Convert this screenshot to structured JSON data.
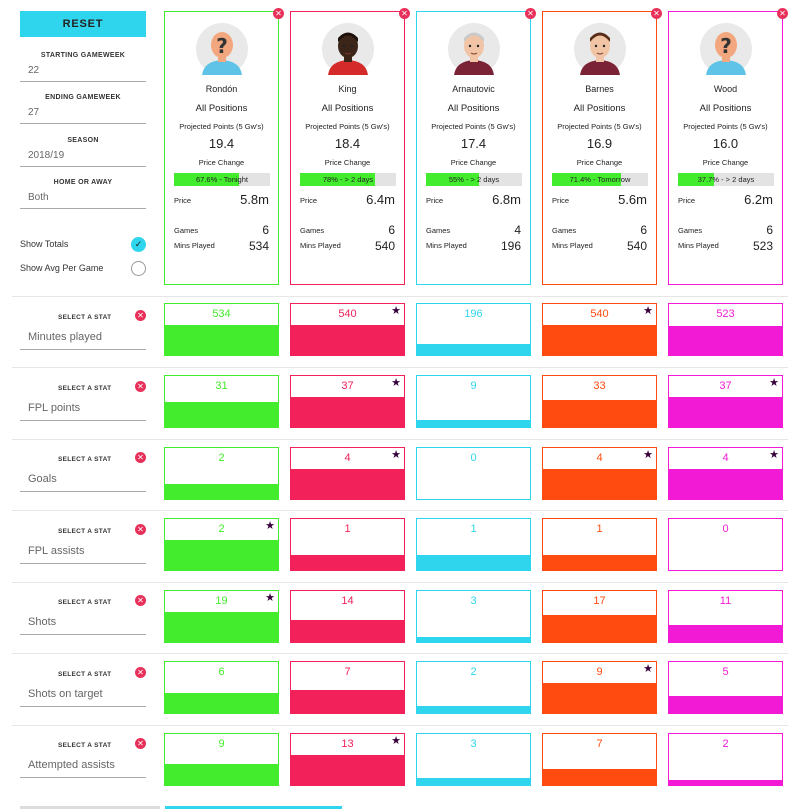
{
  "sidebar": {
    "reset_label": "RESET",
    "filters": [
      {
        "label": "STARTING GAMEWEEK",
        "value": "22"
      },
      {
        "label": "ENDING GAMEWEEK",
        "value": "27"
      },
      {
        "label": "SEASON",
        "value": "2018/19"
      },
      {
        "label": "HOME OR AWAY",
        "value": "Both"
      }
    ],
    "toggles": [
      {
        "label": "Show Totals",
        "checked": true
      },
      {
        "label": "Show Avg Per Game",
        "checked": false
      }
    ],
    "select_stat_label": "SELECT A STAT"
  },
  "players": [
    {
      "name": "Rondón",
      "position": "All Positions",
      "proj_label": "Projected Points (5 Gw's)",
      "proj_points": "19.4",
      "price_change_label": "Price Change",
      "price_change_text": "67.6% - Tonight",
      "price_change_pct": 67.6,
      "price_label": "Price",
      "price": "5.8m",
      "games_label": "Games",
      "games": "6",
      "mins_label": "Mins Played",
      "mins": "534",
      "color": "#43ec2c",
      "avatar": "placeholder",
      "shirt": "#5ec3e6"
    },
    {
      "name": "King",
      "position": "All Positions",
      "proj_label": "Projected Points (5 Gw's)",
      "proj_points": "18.4",
      "price_change_label": "Price Change",
      "price_change_text": "78% - > 2 days",
      "price_change_pct": 78,
      "price_label": "Price",
      "price": "6.4m",
      "games_label": "Games",
      "games": "6",
      "mins_label": "Mins Played",
      "mins": "540",
      "color": "#f2215a",
      "avatar": "dark",
      "shirt": "#d42a2a"
    },
    {
      "name": "Arnautovic",
      "position": "All Positions",
      "proj_label": "Projected Points (5 Gw's)",
      "proj_points": "17.4",
      "price_change_label": "Price Change",
      "price_change_text": "55% - > 2 days",
      "price_change_pct": 55,
      "price_label": "Price",
      "price": "6.8m",
      "games_label": "Games",
      "games": "4",
      "mins_label": "Mins Played",
      "mins": "196",
      "color": "#2fd5ec",
      "avatar": "light",
      "shirt": "#7a2236"
    },
    {
      "name": "Barnes",
      "position": "All Positions",
      "proj_label": "Projected Points (5 Gw's)",
      "proj_points": "16.9",
      "price_change_label": "Price Change",
      "price_change_text": "71.4% - Tomorrow",
      "price_change_pct": 71.4,
      "price_label": "Price",
      "price": "5.6m",
      "games_label": "Games",
      "games": "6",
      "mins_label": "Mins Played",
      "mins": "540",
      "color": "#ff4b0f",
      "avatar": "light2",
      "shirt": "#7a2236"
    },
    {
      "name": "Wood",
      "position": "All Positions",
      "proj_label": "Projected Points (5 Gw's)",
      "proj_points": "16.0",
      "price_change_label": "Price Change",
      "price_change_text": "37.7% - > 2 days",
      "price_change_pct": 37.7,
      "price_label": "Price",
      "price": "6.2m",
      "games_label": "Games",
      "games": "6",
      "mins_label": "Mins Played",
      "mins": "523",
      "color": "#f21ad4",
      "avatar": "placeholder",
      "shirt": "#5ec3e6"
    }
  ],
  "stats": [
    {
      "name": "Minutes played",
      "values": [
        "534",
        "540",
        "196",
        "540",
        "523"
      ],
      "fills": [
        0.989,
        1.0,
        0.363,
        1.0,
        0.969
      ],
      "stars": [
        false,
        true,
        false,
        true,
        false
      ]
    },
    {
      "name": "FPL points",
      "values": [
        "31",
        "37",
        "9",
        "33",
        "37"
      ],
      "fills": [
        0.838,
        1.0,
        0.243,
        0.892,
        1.0
      ],
      "stars": [
        false,
        true,
        false,
        false,
        true
      ]
    },
    {
      "name": "Goals",
      "values": [
        "2",
        "4",
        "0",
        "4",
        "4"
      ],
      "fills": [
        0.5,
        1.0,
        0.0,
        1.0,
        1.0
      ],
      "stars": [
        false,
        true,
        false,
        true,
        true
      ]
    },
    {
      "name": "FPL assists",
      "values": [
        "2",
        "1",
        "1",
        "1",
        "0"
      ],
      "fills": [
        1.0,
        0.5,
        0.5,
        0.5,
        0.0
      ],
      "stars": [
        true,
        false,
        false,
        false,
        false
      ]
    },
    {
      "name": "Shots",
      "values": [
        "19",
        "14",
        "3",
        "17",
        "11"
      ],
      "fills": [
        1.0,
        0.737,
        0.158,
        0.895,
        0.579
      ],
      "stars": [
        true,
        false,
        false,
        false,
        false
      ]
    },
    {
      "name": "Shots on target",
      "values": [
        "6",
        "7",
        "2",
        "9",
        "5"
      ],
      "fills": [
        0.667,
        0.778,
        0.222,
        1.0,
        0.556
      ],
      "stars": [
        false,
        false,
        false,
        true,
        false
      ]
    },
    {
      "name": "Attempted assists",
      "values": [
        "9",
        "13",
        "3",
        "7",
        "2"
      ],
      "fills": [
        0.692,
        1.0,
        0.231,
        0.538,
        0.154
      ],
      "stars": [
        false,
        true,
        false,
        false,
        false
      ]
    }
  ]
}
